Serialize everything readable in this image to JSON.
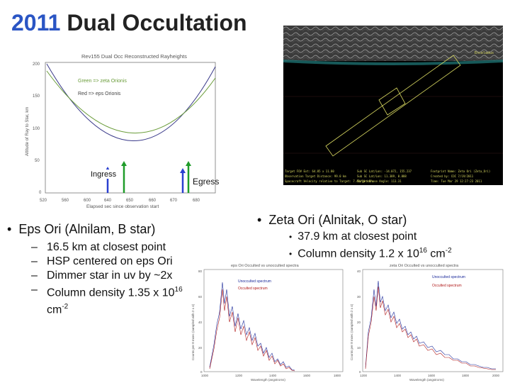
{
  "slide": {
    "title_year": "2011",
    "title_rest": " Dual Occultation"
  },
  "ray_plot": {
    "title": "Rev155 Dual Occ Reconstructed Rayheights",
    "legend_green": "Green => zeta Orionis",
    "legend_red": "Red => eps Orionis",
    "ylabel": "Altitude of Ray to Star, km",
    "xlabel": "Elapsed sec since observation start",
    "y_ticks": [
      "200",
      "150",
      "100",
      "50",
      "0"
    ],
    "x_ticks": [
      "520",
      "560",
      "600",
      "640",
      "650",
      "660",
      "670",
      "680"
    ],
    "ingress_label": "Ingress",
    "egress_label": "Egress"
  },
  "image_panel": {
    "label_a": "Enceladus",
    "footer_lines": [
      "Target FOV Ext: 64.85 x 11.80",
      "Sub SC Lat/Lon: -14.072, 155.237",
      "Footprint Name: Zeta Ori (Zeta_Ori)",
      "Observation Target Distance: 99.0 km",
      "Sub SC Lat/Lon: 11.389, 0.888",
      "Created by: COC 7/19/2011",
      "Spacecraft Velocity relative to Target: 7.48/10 km/s",
      "Target Phase Angle: 113.31",
      "Time: Tue Mar 29 12:27:23 2011"
    ]
  },
  "left_bullets": {
    "main": "Eps Ori (Alnilam, B star)",
    "subs": [
      "16.5 km at closest point",
      "HSP centered on eps Ori",
      "Dimmer star in uv by ~2x"
    ],
    "density_prefix": "Column density 1.35 x 10",
    "density_exp": "16",
    "density_unit": " cm",
    "density_unit_exp": "-2"
  },
  "right_bullets": {
    "main": "Zeta Ori (Alnitak, O star)",
    "sub1": "37.9 km at closest point",
    "density_prefix": "Column density 1.2 x 10",
    "density_exp": "16",
    "density_unit": " cm",
    "density_unit_exp": "-2"
  },
  "spectrum_left": {
    "title": "eps Ori Occulted vs unocculted spectra",
    "legend_blue": "Unocculted spectrum",
    "legend_red": "Occulted spectrum",
    "xlabel": "Wavelength (angstroms)",
    "ylabel": "Counts per 8 msec (sampled with 2 x 4)",
    "y_ticks": [
      "80",
      "60",
      "40",
      "20",
      "0"
    ],
    "x_ticks": [
      "1000",
      "1200",
      "1400",
      "1600",
      "1800"
    ]
  },
  "spectrum_right": {
    "title": "zeta Ori Occulted vs unocculted spectra",
    "legend_blue": "Unocculted spectrum",
    "legend_red": "Occulted spectrum",
    "xlabel": "Wavelength (angstroms)",
    "ylabel": "Counts per 8 msec (sampled with 2 x 4)",
    "y_ticks": [
      "40",
      "30",
      "20",
      "10",
      "0"
    ],
    "x_ticks": [
      "1200",
      "1400",
      "1600",
      "1800",
      "2000"
    ]
  },
  "colors": {
    "title_year": "#2a55c4",
    "green_curve": "#6a9c3a",
    "blue_curve": "#3a3a8a",
    "arrow_blue": "#2a3fd0",
    "arrow_green": "#1f9c2a",
    "spec_red": "#b01818",
    "spec_blue": "#1b2a9a"
  }
}
